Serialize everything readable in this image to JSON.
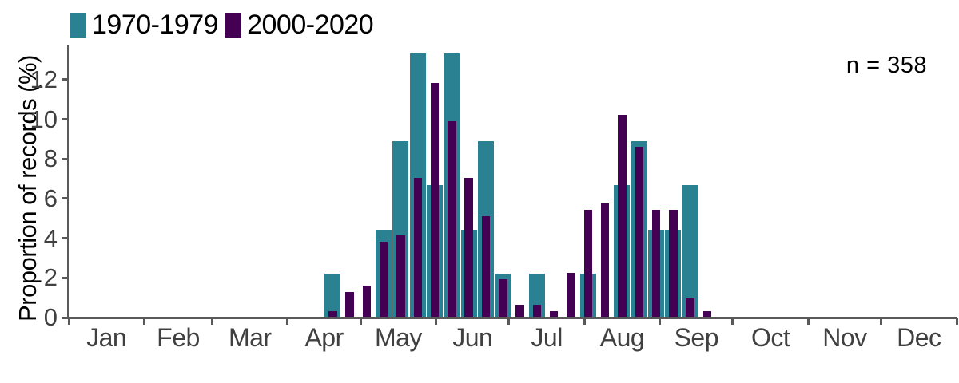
{
  "chart_data": {
    "type": "bar",
    "title": "",
    "xlabel": "",
    "ylabel": "Proportion of records (%)",
    "annotation": "n = 358",
    "legend_position": "top-left",
    "grid": false,
    "ylim": [
      0,
      13.4
    ],
    "yticks": [
      0,
      2,
      4,
      6,
      8,
      10,
      12
    ],
    "x_axis": {
      "unit": "day of year, weekly bins",
      "bin_width_days": 7,
      "month_labels": [
        "Jan",
        "Feb",
        "Mar",
        "Apr",
        "May",
        "Jun",
        "Jul",
        "Aug",
        "Sep",
        "Oct",
        "Nov",
        "Dec"
      ],
      "month_start_days": [
        0,
        31,
        59,
        90,
        120,
        151,
        181,
        212,
        243,
        273,
        304,
        334,
        365
      ]
    },
    "weeks": [
      16,
      17,
      18,
      19,
      20,
      21,
      22,
      23,
      24,
      25,
      26,
      27,
      28,
      29,
      30,
      31,
      32,
      33,
      34,
      35,
      36,
      37,
      38
    ],
    "series": [
      {
        "name": "1970-1979",
        "color": "#2a8191",
        "values_pct": [
          2.22,
          0,
          0,
          4.44,
          8.89,
          13.33,
          6.67,
          13.33,
          4.44,
          8.89,
          2.22,
          0,
          2.22,
          0,
          0,
          2.22,
          0,
          6.67,
          8.89,
          4.44,
          4.44,
          6.67,
          0
        ]
      },
      {
        "name": "2000-2020",
        "color": "#440154",
        "values_pct": [
          0.32,
          1.28,
          1.6,
          3.83,
          4.15,
          7.03,
          11.82,
          9.9,
          7.03,
          5.11,
          1.92,
          0.64,
          0.64,
          0.32,
          2.24,
          5.43,
          5.75,
          10.22,
          8.63,
          5.43,
          5.43,
          0.96,
          0.32
        ]
      }
    ],
    "colors": {
      "axis_line": "#595959",
      "tick_label": "#404040",
      "text": "#000000",
      "background": "#ffffff"
    }
  }
}
